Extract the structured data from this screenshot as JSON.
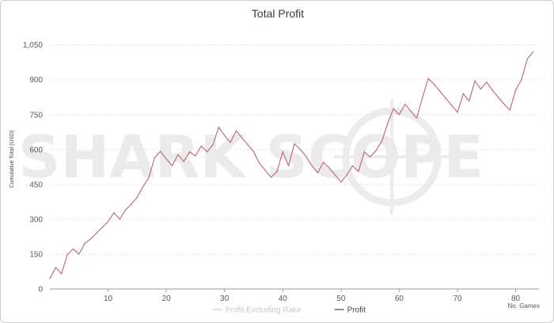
{
  "watermark": "SHARK SCOPE",
  "chart_data": {
    "type": "line",
    "title": "Total Profit",
    "xlabel": "No. Games",
    "ylabel": "Cumulative Total (USD)",
    "xlim": [
      0,
      84
    ],
    "ylim": [
      0,
      1100
    ],
    "x_ticks": [
      10,
      20,
      30,
      40,
      50,
      60,
      70,
      80
    ],
    "y_ticks": [
      0,
      150,
      300,
      450,
      600,
      750,
      900,
      1050
    ],
    "y_tick_labels": [
      "0",
      "150",
      "300",
      "450",
      "600",
      "750",
      "900",
      "1,050"
    ],
    "grid": "horizontal",
    "legend_position": "bottom",
    "legend": [
      {
        "name": "Profit Excluding Rake",
        "color": "#d8d8d8"
      },
      {
        "name": "Profit",
        "color": "#5b6f86"
      }
    ],
    "series": [
      {
        "name": "Profit",
        "color": "#c0707a",
        "x": [
          0,
          1,
          2,
          3,
          4,
          5,
          6,
          7,
          8,
          9,
          10,
          11,
          12,
          13,
          14,
          15,
          16,
          17,
          18,
          19,
          20,
          21,
          22,
          23,
          24,
          25,
          26,
          27,
          28,
          29,
          30,
          31,
          32,
          33,
          34,
          35,
          36,
          37,
          38,
          39,
          40,
          41,
          42,
          43,
          44,
          45,
          46,
          47,
          48,
          49,
          50,
          51,
          52,
          53,
          54,
          55,
          56,
          57,
          58,
          59,
          60,
          61,
          62,
          63,
          64,
          65,
          66,
          67,
          68,
          69,
          70,
          71,
          72,
          73,
          74,
          75,
          76,
          77,
          78,
          79,
          80,
          81,
          82,
          83
        ],
        "y": [
          45,
          92,
          65,
          148,
          172,
          150,
          195,
          215,
          240,
          265,
          290,
          328,
          300,
          340,
          365,
          395,
          440,
          480,
          565,
          592,
          560,
          530,
          578,
          548,
          590,
          572,
          615,
          590,
          620,
          695,
          660,
          630,
          680,
          650,
          620,
          590,
          540,
          510,
          480,
          505,
          590,
          530,
          625,
          600,
          570,
          530,
          500,
          545,
          520,
          490,
          460,
          490,
          530,
          505,
          590,
          568,
          595,
          635,
          710,
          775,
          750,
          795,
          765,
          735,
          825,
          905,
          880,
          850,
          820,
          790,
          760,
          840,
          808,
          895,
          860,
          890,
          855,
          825,
          795,
          770,
          855,
          900,
          990,
          1020
        ]
      }
    ]
  }
}
